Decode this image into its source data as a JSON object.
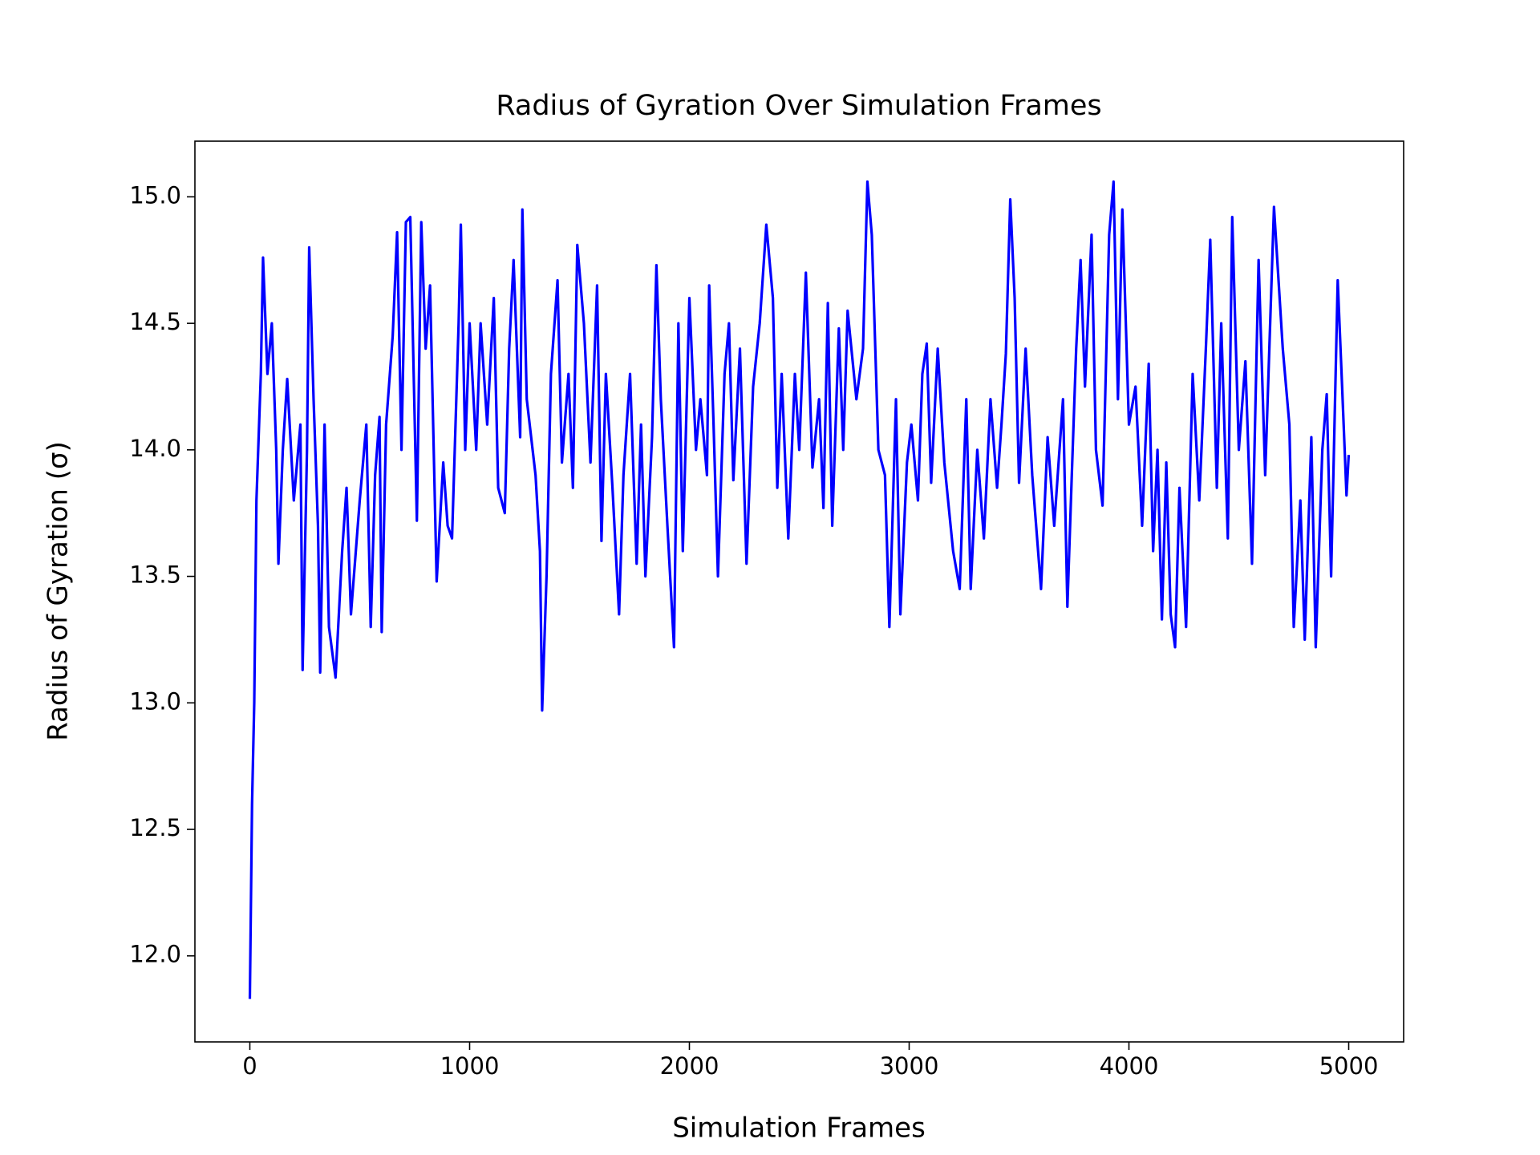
{
  "chart_data": {
    "type": "line",
    "title": "Radius of Gyration Over Simulation Frames",
    "xlabel": "Simulation Frames",
    "ylabel": "Radius of Gyration (σ)",
    "xlim": [
      -250,
      5250
    ],
    "ylim": [
      11.66,
      15.22
    ],
    "xticks": [
      0,
      1000,
      2000,
      3000,
      4000,
      5000
    ],
    "yticks": [
      {
        "value": 12,
        "label": "12.0"
      },
      12.5,
      {
        "value": 13,
        "label": "13.0"
      },
      13.5,
      {
        "value": 14,
        "label": "14.0"
      },
      14.5,
      {
        "value": 15,
        "label": "15.0"
      }
    ],
    "grid": false,
    "series": [
      {
        "name": "Radius of Gyration",
        "color": "#0000ff",
        "x": [
          0,
          10,
          20,
          30,
          50,
          60,
          80,
          100,
          120,
          130,
          150,
          170,
          200,
          230,
          240,
          260,
          270,
          290,
          310,
          320,
          340,
          360,
          390,
          420,
          440,
          460,
          500,
          530,
          550,
          570,
          590,
          600,
          620,
          650,
          670,
          690,
          710,
          730,
          760,
          780,
          800,
          820,
          850,
          880,
          900,
          920,
          950,
          960,
          980,
          1000,
          1030,
          1050,
          1080,
          1110,
          1130,
          1160,
          1180,
          1200,
          1230,
          1240,
          1260,
          1300,
          1320,
          1330,
          1350,
          1370,
          1400,
          1420,
          1450,
          1470,
          1490,
          1520,
          1550,
          1580,
          1600,
          1620,
          1650,
          1680,
          1700,
          1730,
          1760,
          1780,
          1800,
          1830,
          1850,
          1870,
          1900,
          1930,
          1950,
          1970,
          2000,
          2030,
          2050,
          2080,
          2090,
          2110,
          2130,
          2160,
          2180,
          2200,
          2230,
          2260,
          2290,
          2320,
          2350,
          2380,
          2400,
          2420,
          2450,
          2480,
          2500,
          2530,
          2560,
          2590,
          2610,
          2630,
          2650,
          2680,
          2700,
          2720,
          2760,
          2790,
          2810,
          2830,
          2860,
          2890,
          2910,
          2940,
          2960,
          2990,
          3010,
          3040,
          3060,
          3080,
          3100,
          3130,
          3160,
          3200,
          3230,
          3260,
          3280,
          3310,
          3340,
          3370,
          3400,
          3420,
          3440,
          3460,
          3480,
          3500,
          3530,
          3560,
          3600,
          3630,
          3660,
          3700,
          3720,
          3740,
          3760,
          3780,
          3800,
          3830,
          3850,
          3880,
          3910,
          3930,
          3950,
          3970,
          4000,
          4030,
          4060,
          4090,
          4110,
          4130,
          4150,
          4170,
          4190,
          4210,
          4230,
          4260,
          4290,
          4320,
          4350,
          4370,
          4400,
          4420,
          4450,
          4470,
          4500,
          4530,
          4560,
          4590,
          4620,
          4660,
          4700,
          4730,
          4750,
          4780,
          4800,
          4830,
          4850,
          4880,
          4900,
          4920,
          4950,
          4970,
          4990,
          5000
        ],
        "values": [
          11.83,
          12.6,
          13.0,
          13.8,
          14.3,
          14.76,
          14.3,
          14.5,
          14.0,
          13.55,
          14.0,
          14.28,
          13.8,
          14.1,
          13.13,
          14.0,
          14.8,
          14.2,
          13.7,
          13.12,
          14.1,
          13.3,
          13.1,
          13.6,
          13.85,
          13.35,
          13.8,
          14.1,
          13.3,
          13.9,
          14.13,
          13.28,
          14.1,
          14.45,
          14.86,
          14.0,
          14.9,
          14.92,
          13.72,
          14.9,
          14.4,
          14.65,
          13.48,
          13.95,
          13.7,
          13.65,
          14.5,
          14.89,
          14.0,
          14.5,
          14.0,
          14.5,
          14.1,
          14.6,
          13.85,
          13.75,
          14.4,
          14.75,
          14.05,
          14.95,
          14.2,
          13.9,
          13.6,
          12.97,
          13.5,
          14.3,
          14.67,
          13.95,
          14.3,
          13.85,
          14.81,
          14.5,
          13.95,
          14.65,
          13.64,
          14.3,
          13.85,
          13.35,
          13.9,
          14.3,
          13.55,
          14.1,
          13.5,
          14.05,
          14.73,
          14.2,
          13.7,
          13.22,
          14.5,
          13.6,
          14.6,
          14.0,
          14.2,
          13.9,
          14.65,
          14.1,
          13.5,
          14.3,
          14.5,
          13.88,
          14.4,
          13.55,
          14.25,
          14.5,
          14.89,
          14.6,
          13.85,
          14.3,
          13.65,
          14.3,
          14.0,
          14.7,
          13.93,
          14.2,
          13.77,
          14.58,
          13.7,
          14.48,
          14.0,
          14.55,
          14.2,
          14.4,
          15.06,
          14.85,
          14.0,
          13.9,
          13.3,
          14.2,
          13.35,
          13.95,
          14.1,
          13.8,
          14.3,
          14.42,
          13.87,
          14.4,
          13.95,
          13.6,
          13.45,
          14.2,
          13.45,
          14.0,
          13.65,
          14.2,
          13.85,
          14.1,
          14.38,
          14.99,
          14.6,
          13.87,
          14.4,
          13.9,
          13.45,
          14.05,
          13.7,
          14.2,
          13.38,
          13.9,
          14.4,
          14.75,
          14.25,
          14.85,
          14.0,
          13.78,
          14.85,
          15.06,
          14.2,
          14.95,
          14.1,
          14.25,
          13.7,
          14.34,
          13.6,
          14.0,
          13.33,
          13.95,
          13.35,
          13.22,
          13.85,
          13.3,
          14.3,
          13.8,
          14.4,
          14.83,
          13.85,
          14.5,
          13.65,
          14.92,
          14.0,
          14.35,
          13.55,
          14.75,
          13.9,
          14.96,
          14.4,
          14.1,
          13.3,
          13.8,
          13.25,
          14.05,
          13.22,
          14.0,
          14.22,
          13.5,
          14.67,
          14.25,
          13.82,
          13.98
        ]
      }
    ]
  }
}
